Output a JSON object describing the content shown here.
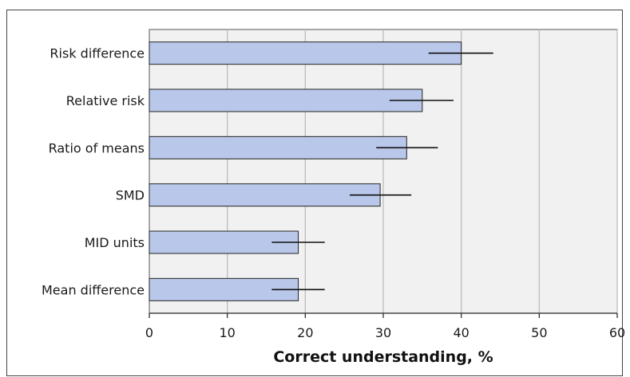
{
  "chart_data": {
    "type": "bar",
    "orientation": "horizontal",
    "categories": [
      "Risk difference",
      "Relative risk",
      "Ratio of means",
      "SMD",
      "MID units",
      "Mean difference"
    ],
    "values": [
      40,
      35,
      33,
      29.6,
      19.1,
      19.1
    ],
    "error_low": [
      35.8,
      30.8,
      29.1,
      25.7,
      15.7,
      15.7
    ],
    "error_high": [
      44.1,
      39,
      37,
      33.6,
      22.5,
      22.5
    ],
    "xlim": [
      0,
      60
    ],
    "xticks": [
      0,
      10,
      20,
      30,
      40,
      50,
      60
    ],
    "xlabel": "Correct understanding, %",
    "ylabel": "",
    "title": "",
    "grid": true,
    "colors": {
      "bar_fill": "#b9c8ea",
      "bar_stroke": "#222222",
      "plot_bg": "#f1f1f1",
      "grid": "#bdbdbd",
      "error_bar": "#111111"
    }
  }
}
